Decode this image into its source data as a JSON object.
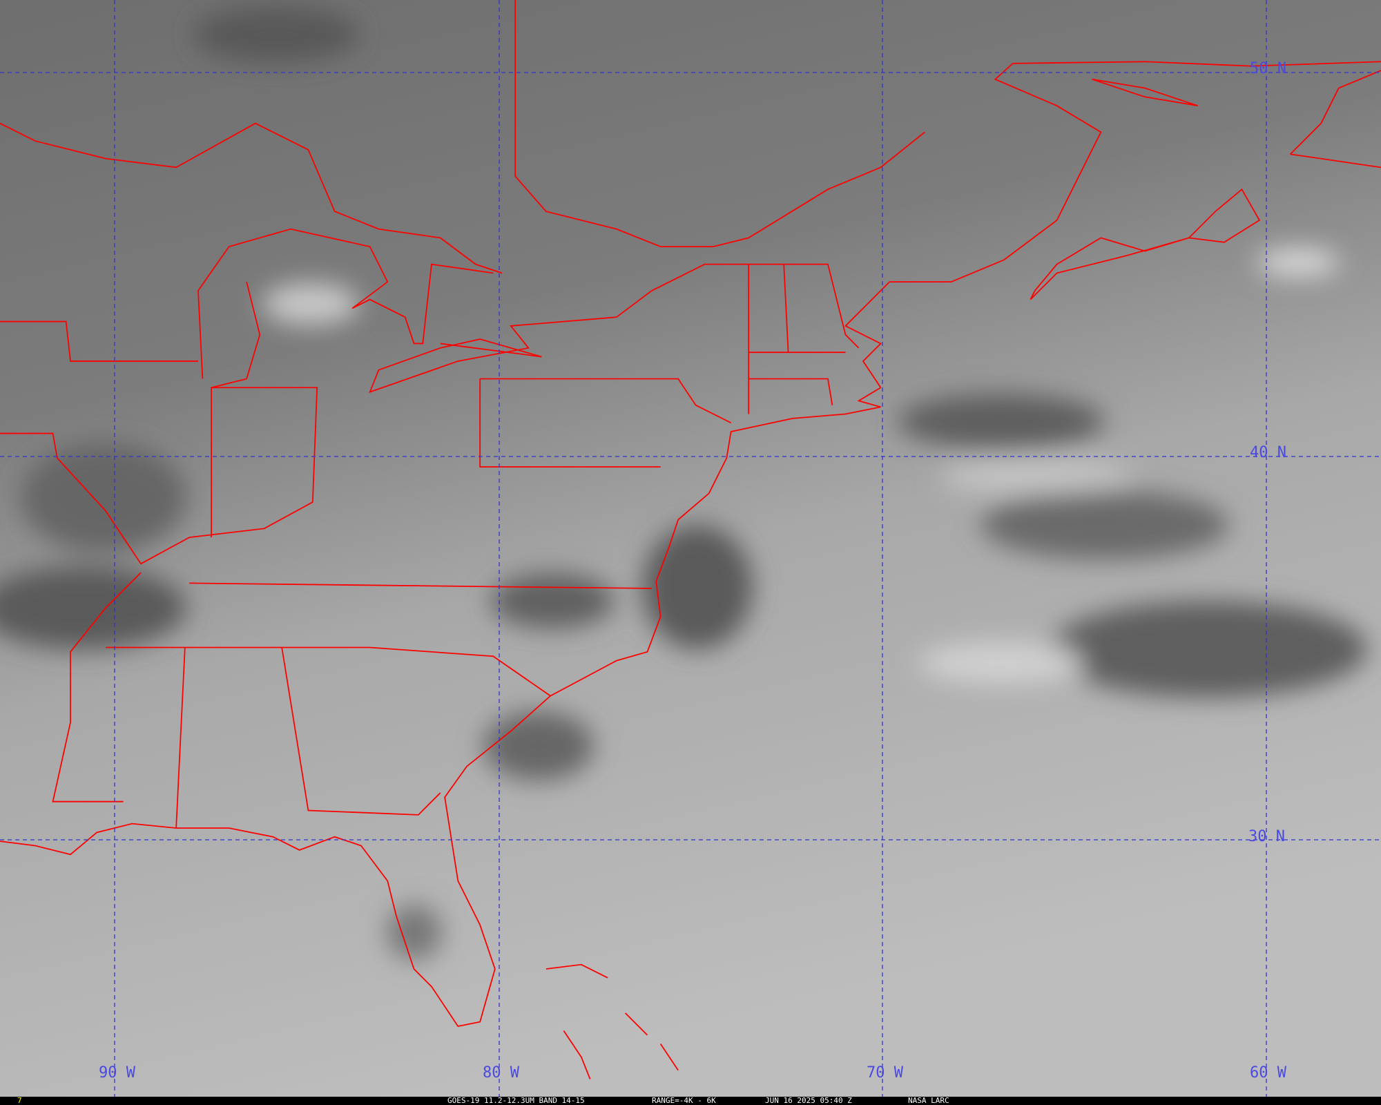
{
  "image": {
    "type": "satellite-infrared-map",
    "colors": {
      "outline": "#ff0000",
      "grid": "#3333cc",
      "labels": "#4a4ae0",
      "caption_text": "#ffffff",
      "frame_number": "#ffff00"
    },
    "latitude_labels": [
      "50 N",
      "40 N",
      "30 N"
    ],
    "longitude_labels": [
      "90 W",
      "80 W",
      "70 W",
      "60 W"
    ]
  },
  "caption": {
    "frame_number": "7",
    "satellite_band": "GOES-19 11.2-12.3UM BAND 14-15",
    "range": "RANGE=-4K - 6K",
    "datetime": "JUN 16 2025 05:40 Z",
    "source": "NASA LARC"
  }
}
